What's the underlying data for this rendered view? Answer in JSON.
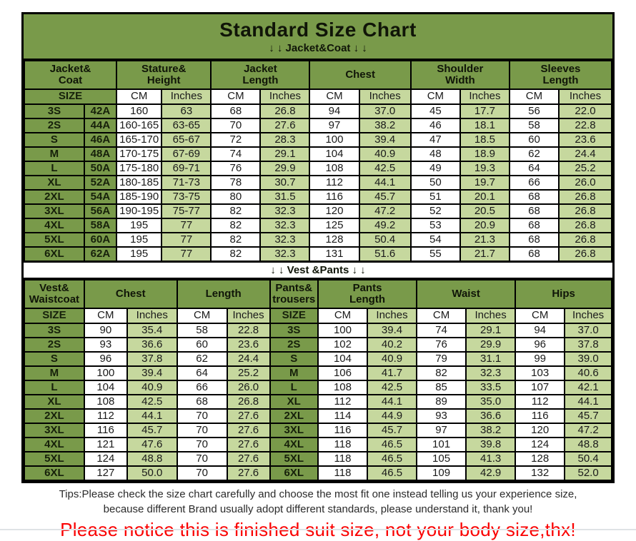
{
  "title": "Standard Size Chart",
  "labels": {
    "size": "SIZE",
    "cm": "CM",
    "inches": "Inches"
  },
  "colors": {
    "dark_green": "#799a4a",
    "light_green": "#c6d89e",
    "border": "#000000",
    "notice_red": "#fa0000"
  },
  "jacket_section": {
    "divider": "↓ ↓  Jacket&Coat ↓ ↓",
    "groups": [
      "Jacket&\nCoat",
      "Stature&\nHeight",
      "Jacket\nLength",
      "Chest",
      "Shoulder\nWidth",
      "Sleeves\nLength"
    ],
    "rows": [
      [
        "3S",
        "42A",
        "160",
        "63",
        "68",
        "26.8",
        "94",
        "37.0",
        "45",
        "17.7",
        "56",
        "22.0"
      ],
      [
        "2S",
        "44A",
        "160-165",
        "63-65",
        "70",
        "27.6",
        "97",
        "38.2",
        "46",
        "18.1",
        "58",
        "22.8"
      ],
      [
        "S",
        "46A",
        "165-170",
        "65-67",
        "72",
        "28.3",
        "100",
        "39.4",
        "47",
        "18.5",
        "60",
        "23.6"
      ],
      [
        "M",
        "48A",
        "170-175",
        "67-69",
        "74",
        "29.1",
        "104",
        "40.9",
        "48",
        "18.9",
        "62",
        "24.4"
      ],
      [
        "L",
        "50A",
        "175-180",
        "69-71",
        "76",
        "29.9",
        "108",
        "42.5",
        "49",
        "19.3",
        "64",
        "25.2"
      ],
      [
        "XL",
        "52A",
        "180-185",
        "71-73",
        "78",
        "30.7",
        "112",
        "44.1",
        "50",
        "19.7",
        "66",
        "26.0"
      ],
      [
        "2XL",
        "54A",
        "185-190",
        "73-75",
        "80",
        "31.5",
        "116",
        "45.7",
        "51",
        "20.1",
        "68",
        "26.8"
      ],
      [
        "3XL",
        "56A",
        "190-195",
        "75-77",
        "82",
        "32.3",
        "120",
        "47.2",
        "52",
        "20.5",
        "68",
        "26.8"
      ],
      [
        "4XL",
        "58A",
        "195",
        "77",
        "82",
        "32.3",
        "125",
        "49.2",
        "53",
        "20.9",
        "68",
        "26.8"
      ],
      [
        "5XL",
        "60A",
        "195",
        "77",
        "82",
        "32.3",
        "128",
        "50.4",
        "54",
        "21.3",
        "68",
        "26.8"
      ],
      [
        "6XL",
        "62A",
        "195",
        "77",
        "82",
        "32.3",
        "131",
        "51.6",
        "55",
        "21.7",
        "68",
        "26.8"
      ]
    ]
  },
  "vest_section": {
    "divider": "↓ ↓  Vest &Pants ↓ ↓",
    "groups": [
      "Vest&\nWaistcoat",
      "Chest",
      "Length",
      "Pants&\ntrousers",
      "Pants\nLength",
      "Waist",
      "Hips"
    ],
    "rows": [
      [
        "3S",
        "90",
        "35.4",
        "58",
        "22.8",
        "3S",
        "100",
        "39.4",
        "74",
        "29.1",
        "94",
        "37.0"
      ],
      [
        "2S",
        "93",
        "36.6",
        "60",
        "23.6",
        "2S",
        "102",
        "40.2",
        "76",
        "29.9",
        "96",
        "37.8"
      ],
      [
        "S",
        "96",
        "37.8",
        "62",
        "24.4",
        "S",
        "104",
        "40.9",
        "79",
        "31.1",
        "99",
        "39.0"
      ],
      [
        "M",
        "100",
        "39.4",
        "64",
        "25.2",
        "M",
        "106",
        "41.7",
        "82",
        "32.3",
        "103",
        "40.6"
      ],
      [
        "L",
        "104",
        "40.9",
        "66",
        "26.0",
        "L",
        "108",
        "42.5",
        "85",
        "33.5",
        "107",
        "42.1"
      ],
      [
        "XL",
        "108",
        "42.5",
        "68",
        "26.8",
        "XL",
        "112",
        "44.1",
        "89",
        "35.0",
        "112",
        "44.1"
      ],
      [
        "2XL",
        "112",
        "44.1",
        "70",
        "27.6",
        "2XL",
        "114",
        "44.9",
        "93",
        "36.6",
        "116",
        "45.7"
      ],
      [
        "3XL",
        "116",
        "45.7",
        "70",
        "27.6",
        "3XL",
        "116",
        "45.7",
        "97",
        "38.2",
        "120",
        "47.2"
      ],
      [
        "4XL",
        "121",
        "47.6",
        "70",
        "27.6",
        "4XL",
        "118",
        "46.5",
        "101",
        "39.8",
        "124",
        "48.8"
      ],
      [
        "5XL",
        "124",
        "48.8",
        "70",
        "27.6",
        "5XL",
        "118",
        "46.5",
        "105",
        "41.3",
        "128",
        "50.4"
      ],
      [
        "6XL",
        "127",
        "50.0",
        "70",
        "27.6",
        "6XL",
        "118",
        "46.5",
        "109",
        "42.9",
        "132",
        "52.0"
      ]
    ]
  },
  "tips": {
    "line1": "Tips:Please check the size chart carefully and choose the most fit one instead telling us your experience size,",
    "line2": "because different Brand usually adopt different standards, please understand it, thank you!",
    "notice": "Please notice this is finished suit size, not your body size,thx!"
  }
}
